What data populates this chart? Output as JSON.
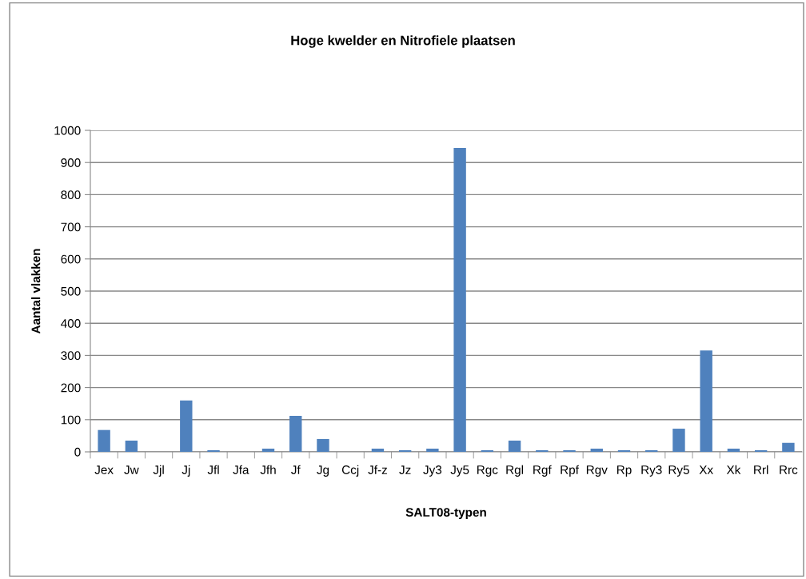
{
  "chart_data": {
    "type": "bar",
    "title": "Hoge kwelder en Nitrofiele plaatsen",
    "xlabel": "SALT08-typen",
    "ylabel": "Aantal vlakken",
    "categories": [
      "Jex",
      "Jw",
      "Jjl",
      "Jj",
      "Jfl",
      "Jfa",
      "Jfh",
      "Jf",
      "Jg",
      "Ccj",
      "Jf-z",
      "Jz",
      "Jy3",
      "Jy5",
      "Rgc",
      "Rgl",
      "Rgf",
      "Rpf",
      "Rgv",
      "Rp",
      "Ry3",
      "Ry5",
      "Xx",
      "Xk",
      "Rrl",
      "Rrc"
    ],
    "values": [
      68,
      35,
      0,
      160,
      5,
      0,
      10,
      112,
      40,
      0,
      10,
      5,
      10,
      945,
      5,
      35,
      5,
      5,
      10,
      5,
      5,
      72,
      315,
      10,
      5,
      28
    ],
    "color": "#4f81bd",
    "ylim": [
      0,
      1000
    ],
    "yticks": [
      0,
      100,
      200,
      300,
      400,
      500,
      600,
      700,
      800,
      900,
      1000
    ],
    "grid": "y"
  }
}
